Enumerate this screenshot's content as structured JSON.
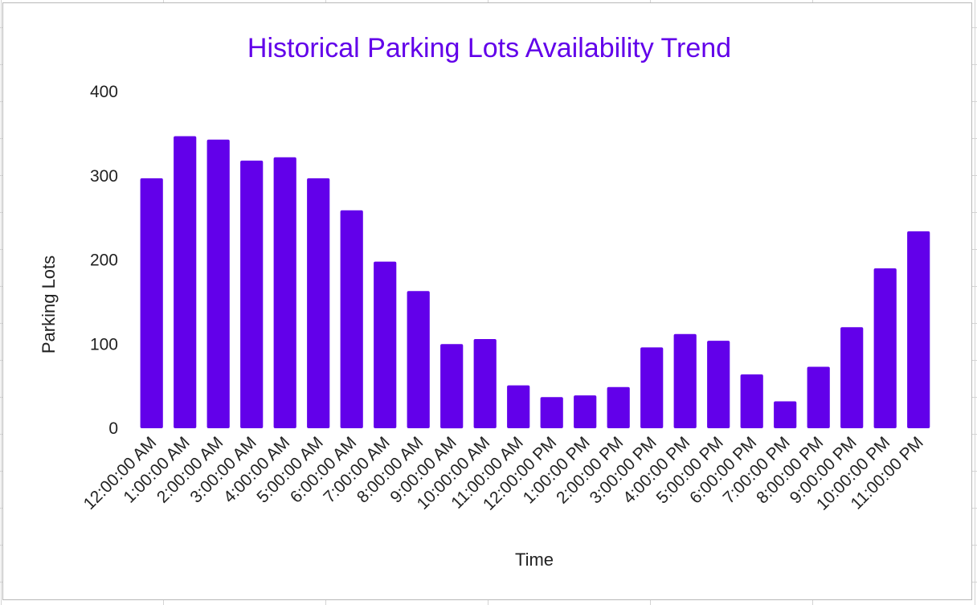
{
  "chart_data": {
    "type": "bar",
    "title": "Historical Parking Lots Availability Trend",
    "xlabel": "Time",
    "ylabel": "Parking Lots",
    "ylim": [
      0,
      400
    ],
    "yticks": [
      "0",
      "100",
      "200",
      "300",
      "400"
    ],
    "grid": false,
    "legend": "none",
    "categories": [
      "12:00:00 AM",
      "1:00:00 AM",
      "2:00:00 AM",
      "3:00:00 AM",
      "4:00:00 AM",
      "5:00:00 AM",
      "6:00:00 AM",
      "7:00:00 AM",
      "8:00:00 AM",
      "9:00:00 AM",
      "10:00:00 AM",
      "11:00:00 AM",
      "12:00:00 PM",
      "1:00:00 PM",
      "2:00:00 PM",
      "3:00:00 PM",
      "4:00:00 PM",
      "5:00:00 PM",
      "6:00:00 PM",
      "7:00:00 PM",
      "8:00:00 PM",
      "9:00:00 PM",
      "10:00:00 PM",
      "11:00:00 PM"
    ],
    "values": [
      297,
      347,
      343,
      318,
      322,
      297,
      259,
      198,
      163,
      100,
      106,
      51,
      37,
      39,
      49,
      96,
      112,
      104,
      64,
      32,
      73,
      120,
      190,
      234
    ],
    "colors": {
      "bar": "#6200ea",
      "title": "#6200ea"
    }
  }
}
